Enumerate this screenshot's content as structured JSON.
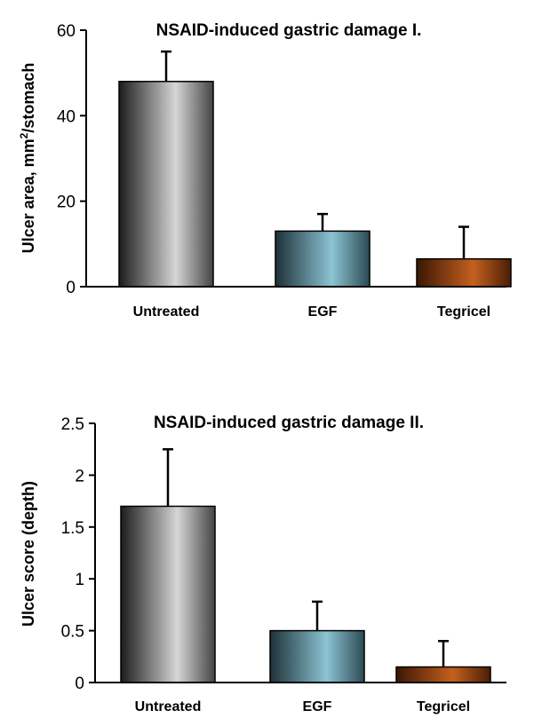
{
  "chart_data": [
    {
      "type": "bar",
      "title": "NSAID-induced gastric damage I.",
      "ylabel_main": "Ulcer area, mm",
      "ylabel_sup": "2",
      "ylabel_tail": "/stomach",
      "categories": [
        "Untreated",
        "EGF",
        "Tegricel"
      ],
      "values": [
        48,
        13,
        6.5
      ],
      "errors": [
        7,
        4,
        7.5
      ],
      "ylim": [
        0,
        60
      ],
      "yticks": [
        "0",
        "20",
        "40",
        "60"
      ],
      "yticks_values": [
        0,
        20,
        40,
        60
      ],
      "bar_colors": [
        "#9a9a9a",
        "#6f9eab",
        "#a0501a"
      ],
      "grid": false,
      "legend": "none"
    },
    {
      "type": "bar",
      "title": "NSAID-induced gastric damage II.",
      "ylabel_main": "Ulcer score (depth)",
      "categories": [
        "Untreated",
        "EGF",
        "Tegricel"
      ],
      "values": [
        1.7,
        0.5,
        0.15
      ],
      "errors": [
        0.55,
        0.28,
        0.25
      ],
      "ylim": [
        0,
        2.5
      ],
      "yticks": [
        "0",
        "0.5",
        "1",
        "1.5",
        "2",
        "2.5"
      ],
      "yticks_values": [
        0,
        0.5,
        1,
        1.5,
        2,
        2.5
      ],
      "bar_colors": [
        "#9a9a9a",
        "#6f9eab",
        "#a0501a"
      ],
      "grid": false,
      "legend": "none"
    }
  ]
}
